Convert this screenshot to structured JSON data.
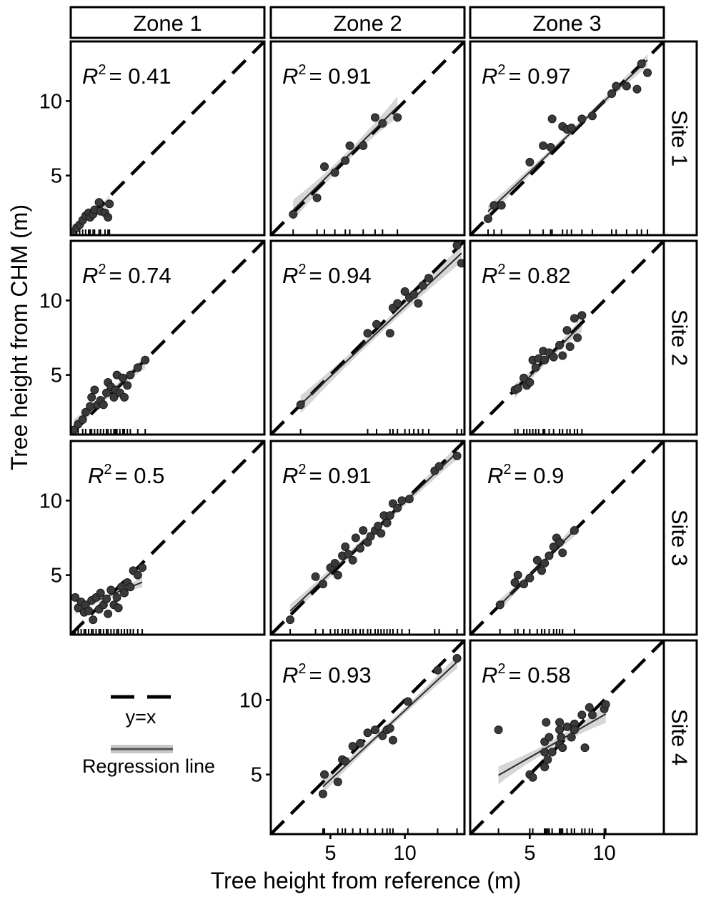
{
  "chart_data": {
    "type": "scatter",
    "xlabel": "Tree height from reference (m)",
    "ylabel": "Tree height from CHM (m)",
    "xlim": [
      1,
      14
    ],
    "ylim": [
      1,
      14
    ],
    "x_ticks": [
      5,
      10
    ],
    "y_ticks": [
      5,
      10
    ],
    "columns": [
      "Zone 1",
      "Zone 2",
      "Zone 3"
    ],
    "rows": [
      "Site 1",
      "Site 2",
      "Site 3",
      "Site 4"
    ],
    "legend": {
      "identity_label": "y=x",
      "regression_label": "Regression line"
    },
    "panels": [
      {
        "site": "Site 1",
        "zone": "Zone 1",
        "r2_prefix": "R",
        "r2_exp": "2",
        "r2_value": "= 0.41",
        "points": [
          [
            1.1,
            1.2
          ],
          [
            1.4,
            1.5
          ],
          [
            1.6,
            1.7
          ],
          [
            1.8,
            2.0
          ],
          [
            2.0,
            2.3
          ],
          [
            2.2,
            2.5
          ],
          [
            2.3,
            2.2
          ],
          [
            2.5,
            2.4
          ],
          [
            2.6,
            2.7
          ],
          [
            2.9,
            3.2
          ],
          [
            3.0,
            2.6
          ],
          [
            3.3,
            2.5
          ],
          [
            3.5,
            2.2
          ],
          [
            3.6,
            3.1
          ]
        ],
        "regression": {
          "slope": 0.78,
          "intercept": 0.5,
          "x": [
            1.1,
            3.6
          ],
          "ci": 0.35
        }
      },
      {
        "site": "Site 1",
        "zone": "Zone 2",
        "r2_prefix": "R",
        "r2_exp": "2",
        "r2_value": "= 0.91",
        "points": [
          [
            2.5,
            2.4
          ],
          [
            4.1,
            3.5
          ],
          [
            4.6,
            5.6
          ],
          [
            5.3,
            5.2
          ],
          [
            6.0,
            6.0
          ],
          [
            6.3,
            7.0
          ],
          [
            7.2,
            7.0
          ],
          [
            8.0,
            8.9
          ],
          [
            8.5,
            8.5
          ],
          [
            9.5,
            8.9
          ]
        ],
        "regression": {
          "slope": 0.99,
          "intercept": 0.2,
          "x": [
            2.5,
            9.5
          ],
          "ci": 0.7
        }
      },
      {
        "site": "Site 1",
        "zone": "Zone 3",
        "r2_prefix": "R",
        "r2_exp": "2",
        "r2_value": "= 0.97",
        "points": [
          [
            2.2,
            2.1
          ],
          [
            2.6,
            3.0
          ],
          [
            3.1,
            3.0
          ],
          [
            5.0,
            5.9
          ],
          [
            5.9,
            7.0
          ],
          [
            6.4,
            6.9
          ],
          [
            6.5,
            8.8
          ],
          [
            7.2,
            8.3
          ],
          [
            7.5,
            8.1
          ],
          [
            7.8,
            8.2
          ],
          [
            8.5,
            8.8
          ],
          [
            9.2,
            9.0
          ],
          [
            10.5,
            10.5
          ],
          [
            10.8,
            11.0
          ],
          [
            11.5,
            11.0
          ],
          [
            12.2,
            10.8
          ],
          [
            12.5,
            12.5
          ],
          [
            12.9,
            11.9
          ]
        ],
        "regression": {
          "slope": 0.95,
          "intercept": 0.5,
          "x": [
            2.2,
            12.9
          ],
          "ci": 0.4
        }
      },
      {
        "site": "Site 2",
        "zone": "Zone 1",
        "r2_prefix": "R",
        "r2_exp": "2",
        "r2_value": "= 0.74",
        "points": [
          [
            1.2,
            1.3
          ],
          [
            1.5,
            1.7
          ],
          [
            1.8,
            2.0
          ],
          [
            2.0,
            2.5
          ],
          [
            2.3,
            2.9
          ],
          [
            2.4,
            3.5
          ],
          [
            2.6,
            4.0
          ],
          [
            2.8,
            3.0
          ],
          [
            3.0,
            3.3
          ],
          [
            3.2,
            3.0
          ],
          [
            3.4,
            3.8
          ],
          [
            3.5,
            4.5
          ],
          [
            3.7,
            4.2
          ],
          [
            3.9,
            3.5
          ],
          [
            4.0,
            4.0
          ],
          [
            4.1,
            5.0
          ],
          [
            4.3,
            3.8
          ],
          [
            4.5,
            4.8
          ],
          [
            4.6,
            3.5
          ],
          [
            4.8,
            4.3
          ],
          [
            5.0,
            5.0
          ],
          [
            5.5,
            5.5
          ],
          [
            6.0,
            6.0
          ]
        ],
        "regression": {
          "slope": 0.9,
          "intercept": 0.5,
          "x": [
            1.2,
            6.0
          ],
          "ci": 0.45
        }
      },
      {
        "site": "Site 2",
        "zone": "Zone 2",
        "r2_prefix": "R",
        "r2_exp": "2",
        "r2_value": "= 0.94",
        "points": [
          [
            3.0,
            3.0
          ],
          [
            7.5,
            7.8
          ],
          [
            8.1,
            8.4
          ],
          [
            9.0,
            7.8
          ],
          [
            9.2,
            9.5
          ],
          [
            9.5,
            9.8
          ],
          [
            10.0,
            10.6
          ],
          [
            10.3,
            10.2
          ],
          [
            10.6,
            10.4
          ],
          [
            10.9,
            9.8
          ],
          [
            11.2,
            11.0
          ],
          [
            11.6,
            11.5
          ],
          [
            13.5,
            13.7
          ],
          [
            13.8,
            12.5
          ]
        ],
        "regression": {
          "slope": 0.94,
          "intercept": 0.2,
          "x": [
            3.0,
            13.8
          ],
          "ci": 0.6
        }
      },
      {
        "site": "Site 2",
        "zone": "Zone 3",
        "r2_prefix": "R",
        "r2_exp": "2",
        "r2_value": "= 0.82",
        "points": [
          [
            4.0,
            4.0
          ],
          [
            4.2,
            4.1
          ],
          [
            4.6,
            4.8
          ],
          [
            4.8,
            4.3
          ],
          [
            5.0,
            4.5
          ],
          [
            5.2,
            6.0
          ],
          [
            5.4,
            5.5
          ],
          [
            5.6,
            6.1
          ],
          [
            5.9,
            6.6
          ],
          [
            6.0,
            6.0
          ],
          [
            6.3,
            6.5
          ],
          [
            6.6,
            6.2
          ],
          [
            7.0,
            7.0
          ],
          [
            7.2,
            6.3
          ],
          [
            7.5,
            8.0
          ],
          [
            7.7,
            6.9
          ],
          [
            8.0,
            8.8
          ],
          [
            8.2,
            7.5
          ],
          [
            8.5,
            9.0
          ]
        ],
        "regression": {
          "slope": 1.0,
          "intercept": -0.1,
          "x": [
            4.0,
            8.5
          ],
          "ci": 0.5
        }
      },
      {
        "site": "Site 3",
        "zone": "Zone 1",
        "r2_prefix": "R",
        "r2_exp": "2",
        "r2_value": "= 0.5",
        "points": [
          [
            1.3,
            3.5
          ],
          [
            1.5,
            2.8
          ],
          [
            1.7,
            3.2
          ],
          [
            1.9,
            2.5
          ],
          [
            2.0,
            3.0
          ],
          [
            2.2,
            2.6
          ],
          [
            2.4,
            3.3
          ],
          [
            2.5,
            2.0
          ],
          [
            2.7,
            3.5
          ],
          [
            2.9,
            2.7
          ],
          [
            3.0,
            3.8
          ],
          [
            3.2,
            3.0
          ],
          [
            3.4,
            3.4
          ],
          [
            3.5,
            2.4
          ],
          [
            3.7,
            4.0
          ],
          [
            3.9,
            3.0
          ],
          [
            4.1,
            3.5
          ],
          [
            4.2,
            2.8
          ],
          [
            4.4,
            4.2
          ],
          [
            4.6,
            3.8
          ],
          [
            4.8,
            4.5
          ],
          [
            5.0,
            4.2
          ],
          [
            5.2,
            5.3
          ],
          [
            5.5,
            5.0
          ],
          [
            5.8,
            5.5
          ]
        ],
        "regression": {
          "slope": 0.4,
          "intercept": 2.2,
          "x": [
            1.3,
            5.8
          ],
          "ci": 0.35
        }
      },
      {
        "site": "Site 3",
        "zone": "Zone 2",
        "r2_prefix": "R",
        "r2_exp": "2",
        "r2_value": "= 0.91",
        "points": [
          [
            2.3,
            2.0
          ],
          [
            4.0,
            4.9
          ],
          [
            4.5,
            4.4
          ],
          [
            5.0,
            5.5
          ],
          [
            5.3,
            5.8
          ],
          [
            5.5,
            5.0
          ],
          [
            5.8,
            6.3
          ],
          [
            6.0,
            6.9
          ],
          [
            6.2,
            6.4
          ],
          [
            6.5,
            6.0
          ],
          [
            6.7,
            7.5
          ],
          [
            7.0,
            6.8
          ],
          [
            7.2,
            8.0
          ],
          [
            7.5,
            7.2
          ],
          [
            7.7,
            7.6
          ],
          [
            8.0,
            8.0
          ],
          [
            8.2,
            8.3
          ],
          [
            8.4,
            7.8
          ],
          [
            8.6,
            9.0
          ],
          [
            8.8,
            8.5
          ],
          [
            9.0,
            9.0
          ],
          [
            9.2,
            9.8
          ],
          [
            9.5,
            9.5
          ],
          [
            9.8,
            10.0
          ],
          [
            10.3,
            10.1
          ],
          [
            12.0,
            12.0
          ],
          [
            12.3,
            12.3
          ],
          [
            13.5,
            13.0
          ]
        ],
        "regression": {
          "slope": 0.95,
          "intercept": 0.4,
          "x": [
            2.3,
            13.5
          ],
          "ci": 0.45
        }
      },
      {
        "site": "Site 3",
        "zone": "Zone 3",
        "r2_prefix": "R",
        "r2_exp": "2",
        "r2_value": "= 0.9",
        "points": [
          [
            3.0,
            3.0
          ],
          [
            4.0,
            4.5
          ],
          [
            4.2,
            5.0
          ],
          [
            4.6,
            4.4
          ],
          [
            5.0,
            4.8
          ],
          [
            5.5,
            6.0
          ],
          [
            5.8,
            5.3
          ],
          [
            6.0,
            5.8
          ],
          [
            6.3,
            6.3
          ],
          [
            6.6,
            6.9
          ],
          [
            6.8,
            7.5
          ],
          [
            7.0,
            7.2
          ],
          [
            7.2,
            6.5
          ],
          [
            8.0,
            8.0
          ]
        ],
        "regression": {
          "slope": 1.0,
          "intercept": 0.0,
          "x": [
            3.0,
            8.0
          ],
          "ci": 0.4
        }
      },
      {
        "site": "Site 4",
        "zone": "Zone 2",
        "r2_prefix": "R",
        "r2_exp": "2",
        "r2_value": "= 0.93",
        "points": [
          [
            4.5,
            3.7
          ],
          [
            4.6,
            5.0
          ],
          [
            5.5,
            4.5
          ],
          [
            5.8,
            6.0
          ],
          [
            6.0,
            5.9
          ],
          [
            6.5,
            6.9
          ],
          [
            7.0,
            7.1
          ],
          [
            7.5,
            7.8
          ],
          [
            8.0,
            8.0
          ],
          [
            8.5,
            7.6
          ],
          [
            8.8,
            8.0
          ],
          [
            9.0,
            8.1
          ],
          [
            9.2,
            7.3
          ],
          [
            10.2,
            9.9
          ],
          [
            12.2,
            12.0
          ],
          [
            13.5,
            12.8
          ]
        ],
        "regression": {
          "slope": 0.93,
          "intercept": 0.0,
          "x": [
            4.5,
            13.5
          ],
          "ci": 0.45
        }
      },
      {
        "site": "Site 4",
        "zone": "Zone 3",
        "r2_prefix": "R",
        "r2_exp": "2",
        "r2_value": "= 0.58",
        "points": [
          [
            2.9,
            8.0
          ],
          [
            5.0,
            5.0
          ],
          [
            5.2,
            4.8
          ],
          [
            6.0,
            5.5
          ],
          [
            6.0,
            6.5
          ],
          [
            6.0,
            7.2
          ],
          [
            6.1,
            8.5
          ],
          [
            6.2,
            6.0
          ],
          [
            6.3,
            7.5
          ],
          [
            6.5,
            6.5
          ],
          [
            7.0,
            7.0
          ],
          [
            7.0,
            8.0
          ],
          [
            7.0,
            8.5
          ],
          [
            7.1,
            7.5
          ],
          [
            7.2,
            6.8
          ],
          [
            7.5,
            8.2
          ],
          [
            7.8,
            7.5
          ],
          [
            8.0,
            8.4
          ],
          [
            8.0,
            8.0
          ],
          [
            8.5,
            9.0
          ],
          [
            8.7,
            6.8
          ],
          [
            9.0,
            9.5
          ],
          [
            9.2,
            9.0
          ],
          [
            10.0,
            9.4
          ],
          [
            10.1,
            9.7
          ]
        ],
        "regression": {
          "slope": 0.57,
          "intercept": 3.3,
          "x": [
            2.9,
            10.1
          ],
          "ci": 0.6
        }
      }
    ]
  }
}
